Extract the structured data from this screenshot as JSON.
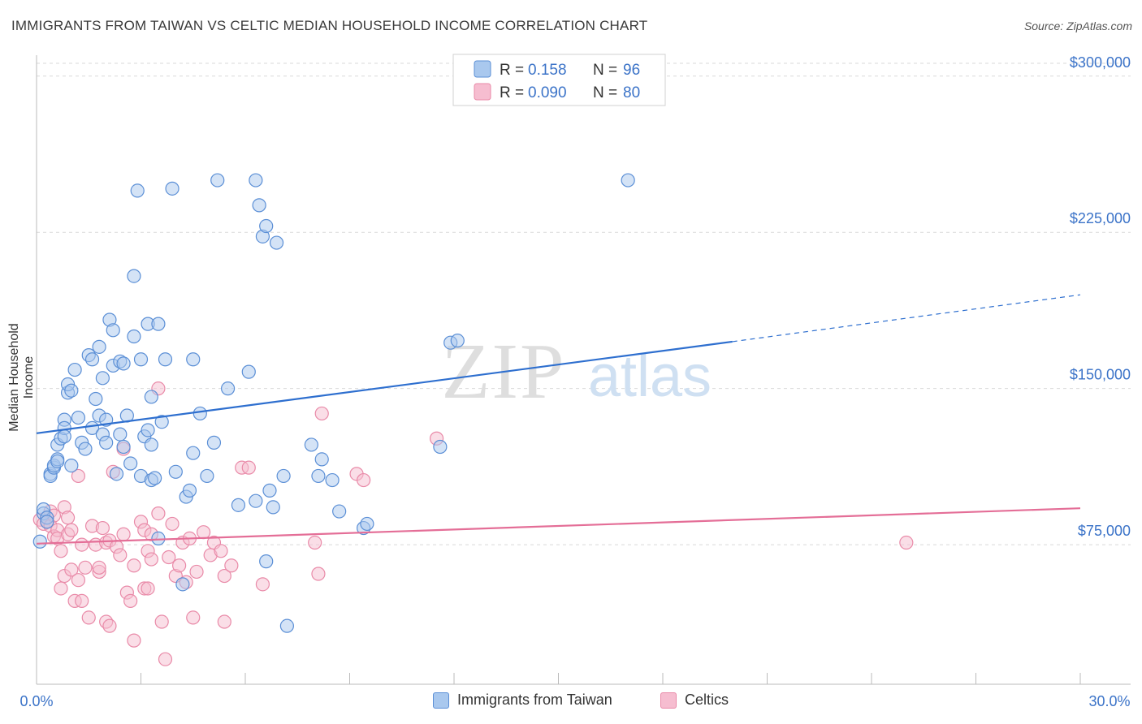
{
  "header": {
    "title": "IMMIGRANTS FROM TAIWAN VS CELTIC MEDIAN HOUSEHOLD INCOME CORRELATION CHART",
    "source": "Source: ZipAtlas.com"
  },
  "watermark": {
    "zip": "ZIP",
    "atlas": "atlas"
  },
  "colors": {
    "blue_fill": "#a9c8ee",
    "blue_stroke": "#5b8fd6",
    "blue_line": "#2e6fcf",
    "pink_fill": "#f6bdd0",
    "pink_stroke": "#e98aa8",
    "pink_line": "#e46e97",
    "axis_text": "#3b73c8",
    "grid": "#d9d9d9"
  },
  "chart_data": {
    "type": "scatter",
    "title": "IMMIGRANTS FROM TAIWAN VS CELTIC MEDIAN HOUSEHOLD INCOME CORRELATION CHART",
    "xlabel": "",
    "ylabel": "Median Household Income",
    "xlim": [
      0,
      30
    ],
    "ylim": [
      8000,
      312000
    ],
    "x_tick_labels": [
      "0.0%",
      "30.0%"
    ],
    "y_ticks": [
      75000,
      150000,
      225000,
      300000
    ],
    "y_tick_labels": [
      "$75,000",
      "$150,000",
      "$225,000",
      "$300,000"
    ],
    "legend": {
      "position": "top-center",
      "entries": [
        {
          "r_label": "R =",
          "r_value": "0.158",
          "n_label": "N =",
          "n_value": "96"
        },
        {
          "r_label": "R =",
          "r_value": "0.090",
          "n_label": "N =",
          "n_value": "80"
        }
      ]
    },
    "series": [
      {
        "name": "Immigrants from Taiwan",
        "trend": {
          "x0": 0,
          "y0": 128500,
          "x1": 20.0,
          "y1": 172500,
          "dashed_to_x": 30,
          "dashed_to_y": 195000
        },
        "points": [
          [
            0.1,
            76500
          ],
          [
            0.2,
            90000
          ],
          [
            0.2,
            92000
          ],
          [
            0.3,
            88000
          ],
          [
            0.3,
            86000
          ],
          [
            0.4,
            109000
          ],
          [
            0.4,
            108000
          ],
          [
            0.5,
            112000
          ],
          [
            0.5,
            113000
          ],
          [
            0.6,
            116000
          ],
          [
            0.6,
            115000
          ],
          [
            0.6,
            123000
          ],
          [
            0.7,
            126000
          ],
          [
            0.8,
            135000
          ],
          [
            0.8,
            131000
          ],
          [
            0.8,
            127000
          ],
          [
            0.9,
            148000
          ],
          [
            0.9,
            152000
          ],
          [
            1.0,
            149000
          ],
          [
            1.0,
            113000
          ],
          [
            1.1,
            159000
          ],
          [
            1.2,
            136000
          ],
          [
            1.3,
            124000
          ],
          [
            1.4,
            121000
          ],
          [
            1.5,
            166000
          ],
          [
            1.6,
            131000
          ],
          [
            1.6,
            164000
          ],
          [
            1.7,
            145000
          ],
          [
            1.8,
            170000
          ],
          [
            1.8,
            137000
          ],
          [
            1.9,
            155000
          ],
          [
            1.9,
            128000
          ],
          [
            2.0,
            135000
          ],
          [
            2.0,
            124000
          ],
          [
            2.1,
            183000
          ],
          [
            2.2,
            161000
          ],
          [
            2.2,
            178000
          ],
          [
            2.3,
            109000
          ],
          [
            2.4,
            128000
          ],
          [
            2.4,
            163000
          ],
          [
            2.5,
            162000
          ],
          [
            2.5,
            122000
          ],
          [
            2.6,
            137000
          ],
          [
            2.7,
            114000
          ],
          [
            2.8,
            175000
          ],
          [
            2.8,
            204000
          ],
          [
            2.9,
            245000
          ],
          [
            3.0,
            108000
          ],
          [
            3.0,
            164000
          ],
          [
            3.1,
            127000
          ],
          [
            3.2,
            130000
          ],
          [
            3.2,
            181000
          ],
          [
            3.3,
            123000
          ],
          [
            3.3,
            146000
          ],
          [
            3.3,
            106000
          ],
          [
            3.4,
            107000
          ],
          [
            3.5,
            78000
          ],
          [
            3.5,
            181000
          ],
          [
            3.6,
            134000
          ],
          [
            3.7,
            164000
          ],
          [
            3.9,
            246000
          ],
          [
            4.0,
            110000
          ],
          [
            4.2,
            56000
          ],
          [
            4.3,
            98000
          ],
          [
            4.4,
            101000
          ],
          [
            4.5,
            164000
          ],
          [
            4.5,
            119000
          ],
          [
            4.7,
            138000
          ],
          [
            4.9,
            108000
          ],
          [
            5.1,
            124000
          ],
          [
            5.2,
            250000
          ],
          [
            5.5,
            150000
          ],
          [
            5.8,
            94000
          ],
          [
            6.1,
            158000
          ],
          [
            6.3,
            250000
          ],
          [
            6.3,
            96000
          ],
          [
            6.4,
            238000
          ],
          [
            6.5,
            223000
          ],
          [
            6.6,
            67000
          ],
          [
            6.6,
            228000
          ],
          [
            6.7,
            101000
          ],
          [
            6.8,
            93000
          ],
          [
            6.9,
            220000
          ],
          [
            7.1,
            108000
          ],
          [
            7.2,
            36000
          ],
          [
            7.9,
            123000
          ],
          [
            8.1,
            108000
          ],
          [
            8.2,
            116000
          ],
          [
            8.5,
            106000
          ],
          [
            8.7,
            91000
          ],
          [
            9.4,
            83000
          ],
          [
            9.5,
            85000
          ],
          [
            11.6,
            122000
          ],
          [
            11.9,
            172000
          ],
          [
            12.1,
            173000
          ],
          [
            17.0,
            250000
          ]
        ]
      },
      {
        "name": "Celtics",
        "trend": {
          "x0": 0,
          "y0": 75500,
          "x1": 30,
          "y1": 92500
        },
        "points": [
          [
            0.1,
            87000
          ],
          [
            0.2,
            85000
          ],
          [
            0.3,
            86000
          ],
          [
            0.3,
            88000
          ],
          [
            0.4,
            91000
          ],
          [
            0.4,
            84000
          ],
          [
            0.5,
            79000
          ],
          [
            0.5,
            89000
          ],
          [
            0.6,
            82000
          ],
          [
            0.6,
            78000
          ],
          [
            0.7,
            72000
          ],
          [
            0.8,
            93000
          ],
          [
            0.8,
            60000
          ],
          [
            0.9,
            88000
          ],
          [
            0.9,
            80000
          ],
          [
            1.0,
            82000
          ],
          [
            1.0,
            63000
          ],
          [
            1.1,
            48000
          ],
          [
            1.2,
            58000
          ],
          [
            1.2,
            108000
          ],
          [
            1.3,
            75000
          ],
          [
            1.4,
            64000
          ],
          [
            1.5,
            40000
          ],
          [
            1.6,
            84000
          ],
          [
            1.7,
            75000
          ],
          [
            1.8,
            62000
          ],
          [
            1.8,
            64000
          ],
          [
            1.9,
            83000
          ],
          [
            2.0,
            76000
          ],
          [
            2.0,
            38000
          ],
          [
            2.1,
            77000
          ],
          [
            2.1,
            36000
          ],
          [
            2.2,
            110000
          ],
          [
            2.3,
            74000
          ],
          [
            2.4,
            70000
          ],
          [
            2.5,
            80000
          ],
          [
            2.5,
            121000
          ],
          [
            2.6,
            52000
          ],
          [
            2.7,
            48000
          ],
          [
            2.8,
            65000
          ],
          [
            2.8,
            29000
          ],
          [
            3.0,
            86000
          ],
          [
            3.1,
            82000
          ],
          [
            3.1,
            54000
          ],
          [
            3.2,
            54000
          ],
          [
            3.2,
            72000
          ],
          [
            3.3,
            80000
          ],
          [
            3.3,
            68000
          ],
          [
            3.5,
            90000
          ],
          [
            3.5,
            150000
          ],
          [
            3.6,
            38000
          ],
          [
            3.7,
            20000
          ],
          [
            3.8,
            69000
          ],
          [
            3.9,
            85000
          ],
          [
            4.0,
            60000
          ],
          [
            4.1,
            65000
          ],
          [
            4.2,
            76000
          ],
          [
            4.3,
            57000
          ],
          [
            4.4,
            78000
          ],
          [
            4.5,
            40000
          ],
          [
            4.6,
            62000
          ],
          [
            4.8,
            81000
          ],
          [
            5.0,
            70000
          ],
          [
            5.1,
            76000
          ],
          [
            5.3,
            72000
          ],
          [
            5.4,
            38000
          ],
          [
            5.4,
            60000
          ],
          [
            5.6,
            65000
          ],
          [
            5.9,
            112000
          ],
          [
            6.1,
            112000
          ],
          [
            6.5,
            56000
          ],
          [
            8.0,
            76000
          ],
          [
            8.1,
            61000
          ],
          [
            8.2,
            138000
          ],
          [
            9.2,
            109000
          ],
          [
            9.4,
            106000
          ],
          [
            11.5,
            126000
          ],
          [
            25.0,
            76000
          ],
          [
            0.7,
            54000
          ],
          [
            1.3,
            48000
          ]
        ]
      }
    ]
  }
}
